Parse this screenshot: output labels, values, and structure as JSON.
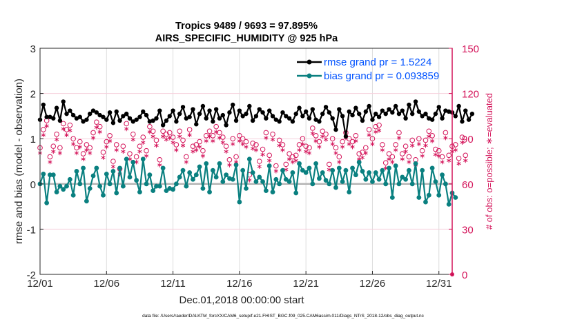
{
  "chart_data": {
    "type": "line",
    "title": [
      "Tropics 9489 / 9693 = 97.895%",
      "AIRS_SPECIFIC_HUMIDITY @ 925 hPa"
    ],
    "xlabel": "Dec.01,2018 00:00:00 start",
    "ylabel": "rmse and bias (model - observation)",
    "ylabel_right": "# of obs: o=possible; ∗=evaluated",
    "xlim_days": [
      0,
      31
    ],
    "ylim": [
      -2,
      3
    ],
    "ylim_right": [
      0,
      150
    ],
    "x_ticks": [
      {
        "day": 0,
        "label": "12/01"
      },
      {
        "day": 5,
        "label": "12/06"
      },
      {
        "day": 10,
        "label": "12/11"
      },
      {
        "day": 15,
        "label": "12/16"
      },
      {
        "day": 20,
        "label": "12/21"
      },
      {
        "day": 25,
        "label": "12/26"
      },
      {
        "day": 30,
        "label": "12/31"
      }
    ],
    "y_ticks": [
      "-2",
      "-1",
      "0",
      "1",
      "2",
      "3"
    ],
    "y_ticks_right": [
      "0",
      "30",
      "60",
      "90",
      "120",
      "150"
    ],
    "grid": true,
    "legend_position": "top-right",
    "x_step_days": 0.25,
    "series": [
      {
        "name": "rmse grand pr = 1.5224",
        "color": "#000000",
        "marker": "asterisk-dot",
        "values": [
          1.42,
          1.75,
          1.48,
          1.48,
          1.45,
          1.68,
          1.4,
          1.82,
          1.55,
          1.62,
          1.52,
          1.45,
          1.48,
          1.38,
          1.42,
          1.55,
          1.62,
          1.58,
          1.52,
          1.48,
          1.42,
          1.58,
          1.35,
          1.6,
          1.4,
          1.5,
          1.55,
          1.45,
          1.38,
          1.42,
          1.48,
          1.6,
          1.52,
          1.38,
          1.4,
          1.45,
          1.62,
          1.3,
          1.4,
          1.5,
          1.62,
          1.38,
          1.55,
          1.7,
          1.45,
          1.48,
          1.65,
          1.32,
          1.55,
          1.72,
          1.45,
          1.62,
          1.38,
          1.65,
          1.45,
          1.52,
          1.3,
          1.58,
          1.75,
          1.4,
          1.62,
          1.5,
          1.55,
          1.72,
          1.4,
          1.5,
          1.65,
          1.58,
          1.45,
          1.62,
          1.5,
          1.42,
          1.38,
          1.58,
          1.5,
          1.45,
          1.38,
          1.55,
          1.68,
          1.5,
          1.6,
          1.45,
          1.65,
          1.42,
          1.38,
          1.55,
          1.7,
          1.58,
          1.45,
          1.2,
          1.65,
          1.5,
          1.05,
          1.6,
          1.52,
          1.68,
          1.55,
          1.4,
          1.6,
          1.72,
          1.42,
          1.55,
          1.48,
          1.62,
          1.55,
          1.65,
          1.58,
          1.72,
          1.55,
          1.62,
          1.45,
          1.75,
          1.55,
          1.82,
          1.6,
          1.5,
          1.55,
          1.45,
          1.42,
          1.55,
          1.7,
          1.45,
          1.62,
          1.6,
          1.58,
          1.5,
          1.72,
          1.38,
          1.62,
          1.42,
          1.55
        ]
      },
      {
        "name": "bias grand pr = 0.093859",
        "color": "#0a8080",
        "marker": "dot",
        "values": [
          0.0,
          0.22,
          -0.42,
          0.2,
          0.2,
          -0.18,
          -0.05,
          -0.12,
          -0.05,
          0.1,
          -0.25,
          0.28,
          0.0,
          0.35,
          -0.38,
          -0.1,
          0.18,
          0.35,
          -0.05,
          -0.25,
          0.22,
          0.0,
          0.28,
          -0.2,
          0.35,
          -0.05,
          0.55,
          0.15,
          0.48,
          0.08,
          -0.18,
          0.55,
          0.0,
          0.2,
          -0.15,
          -0.05,
          -0.05,
          0.35,
          -0.15,
          -0.1,
          -0.12,
          0.0,
          0.15,
          0.3,
          -0.05,
          0.25,
          0.1,
          0.2,
          0.38,
          -0.1,
          0.45,
          -0.18,
          0.3,
          0.15,
          0.45,
          0.05,
          0.2,
          0.12,
          0.1,
          0.42,
          -0.4,
          0.3,
          -0.1,
          0.55,
          0.25,
          0.05,
          0.15,
          0.05,
          -0.15,
          0.4,
          -0.18,
          0.1,
          0.0,
          0.3,
          0.1,
          0.05,
          0.25,
          -0.2,
          0.45,
          0.3,
          0.25,
          0.35,
          0.0,
          0.45,
          0.12,
          0.25,
          0.08,
          0.0,
          0.3,
          -0.08,
          0.35,
          0.05,
          0.3,
          -0.18,
          0.35,
          0.2,
          0.48,
          0.28,
          0.1,
          0.25,
          0.05,
          0.25,
          0.1,
          0.3,
          0.0,
          0.35,
          -0.3,
          0.4,
          0.0,
          0.15,
          0.1,
          0.3,
          0.0,
          0.45,
          -0.3,
          0.3,
          -0.4,
          -0.25,
          0.35,
          0.05,
          -0.25,
          0.2,
          0.0,
          -0.45,
          -0.2,
          -0.3
        ]
      }
    ],
    "obs_counts": {
      "note": "right axis (counts)",
      "possible_color": "#d4145a",
      "evaluated_color": "#d4145a",
      "possible": [
        84,
        96,
        102,
        78,
        85,
        93,
        84,
        100,
        96,
        99,
        90,
        84,
        88,
        80,
        86,
        84,
        94,
        101,
        98,
        81,
        88,
        92,
        75,
        86,
        70,
        85,
        100,
        80,
        93,
        78,
        85,
        91,
        82,
        98,
        95,
        89,
        76,
        95,
        93,
        94,
        91,
        86,
        95,
        89,
        78,
        96,
        85,
        86,
        88,
        82,
        92,
        95,
        92,
        98,
        94,
        91,
        85,
        76,
        90,
        78,
        92,
        90,
        88,
        66,
        87,
        86,
        75,
        83,
        94,
        79,
        93,
        72,
        89,
        86,
        73,
        80,
        78,
        79,
        86,
        90,
        85,
        84,
        97,
        92,
        88,
        95,
        93,
        73,
        90,
        84,
        78,
        88,
        94,
        90,
        88,
        92,
        80,
        81,
        84,
        96,
        90,
        98,
        99,
        86,
        74,
        80,
        78,
        86,
        94,
        80,
        85,
        78,
        89,
        76,
        90,
        82,
        89,
        95,
        92,
        83,
        82,
        78,
        94,
        79,
        85,
        86,
        77,
        91,
        79
      ]
    }
  },
  "footer": "data file: /Users/raeder/DAI/ATM_forcXX/CAM6_setup/f.e21.FHIST_BGC.f09_025.CAM6assim.011/Diags_NTrS_2018-12/obs_diag_output.nc"
}
